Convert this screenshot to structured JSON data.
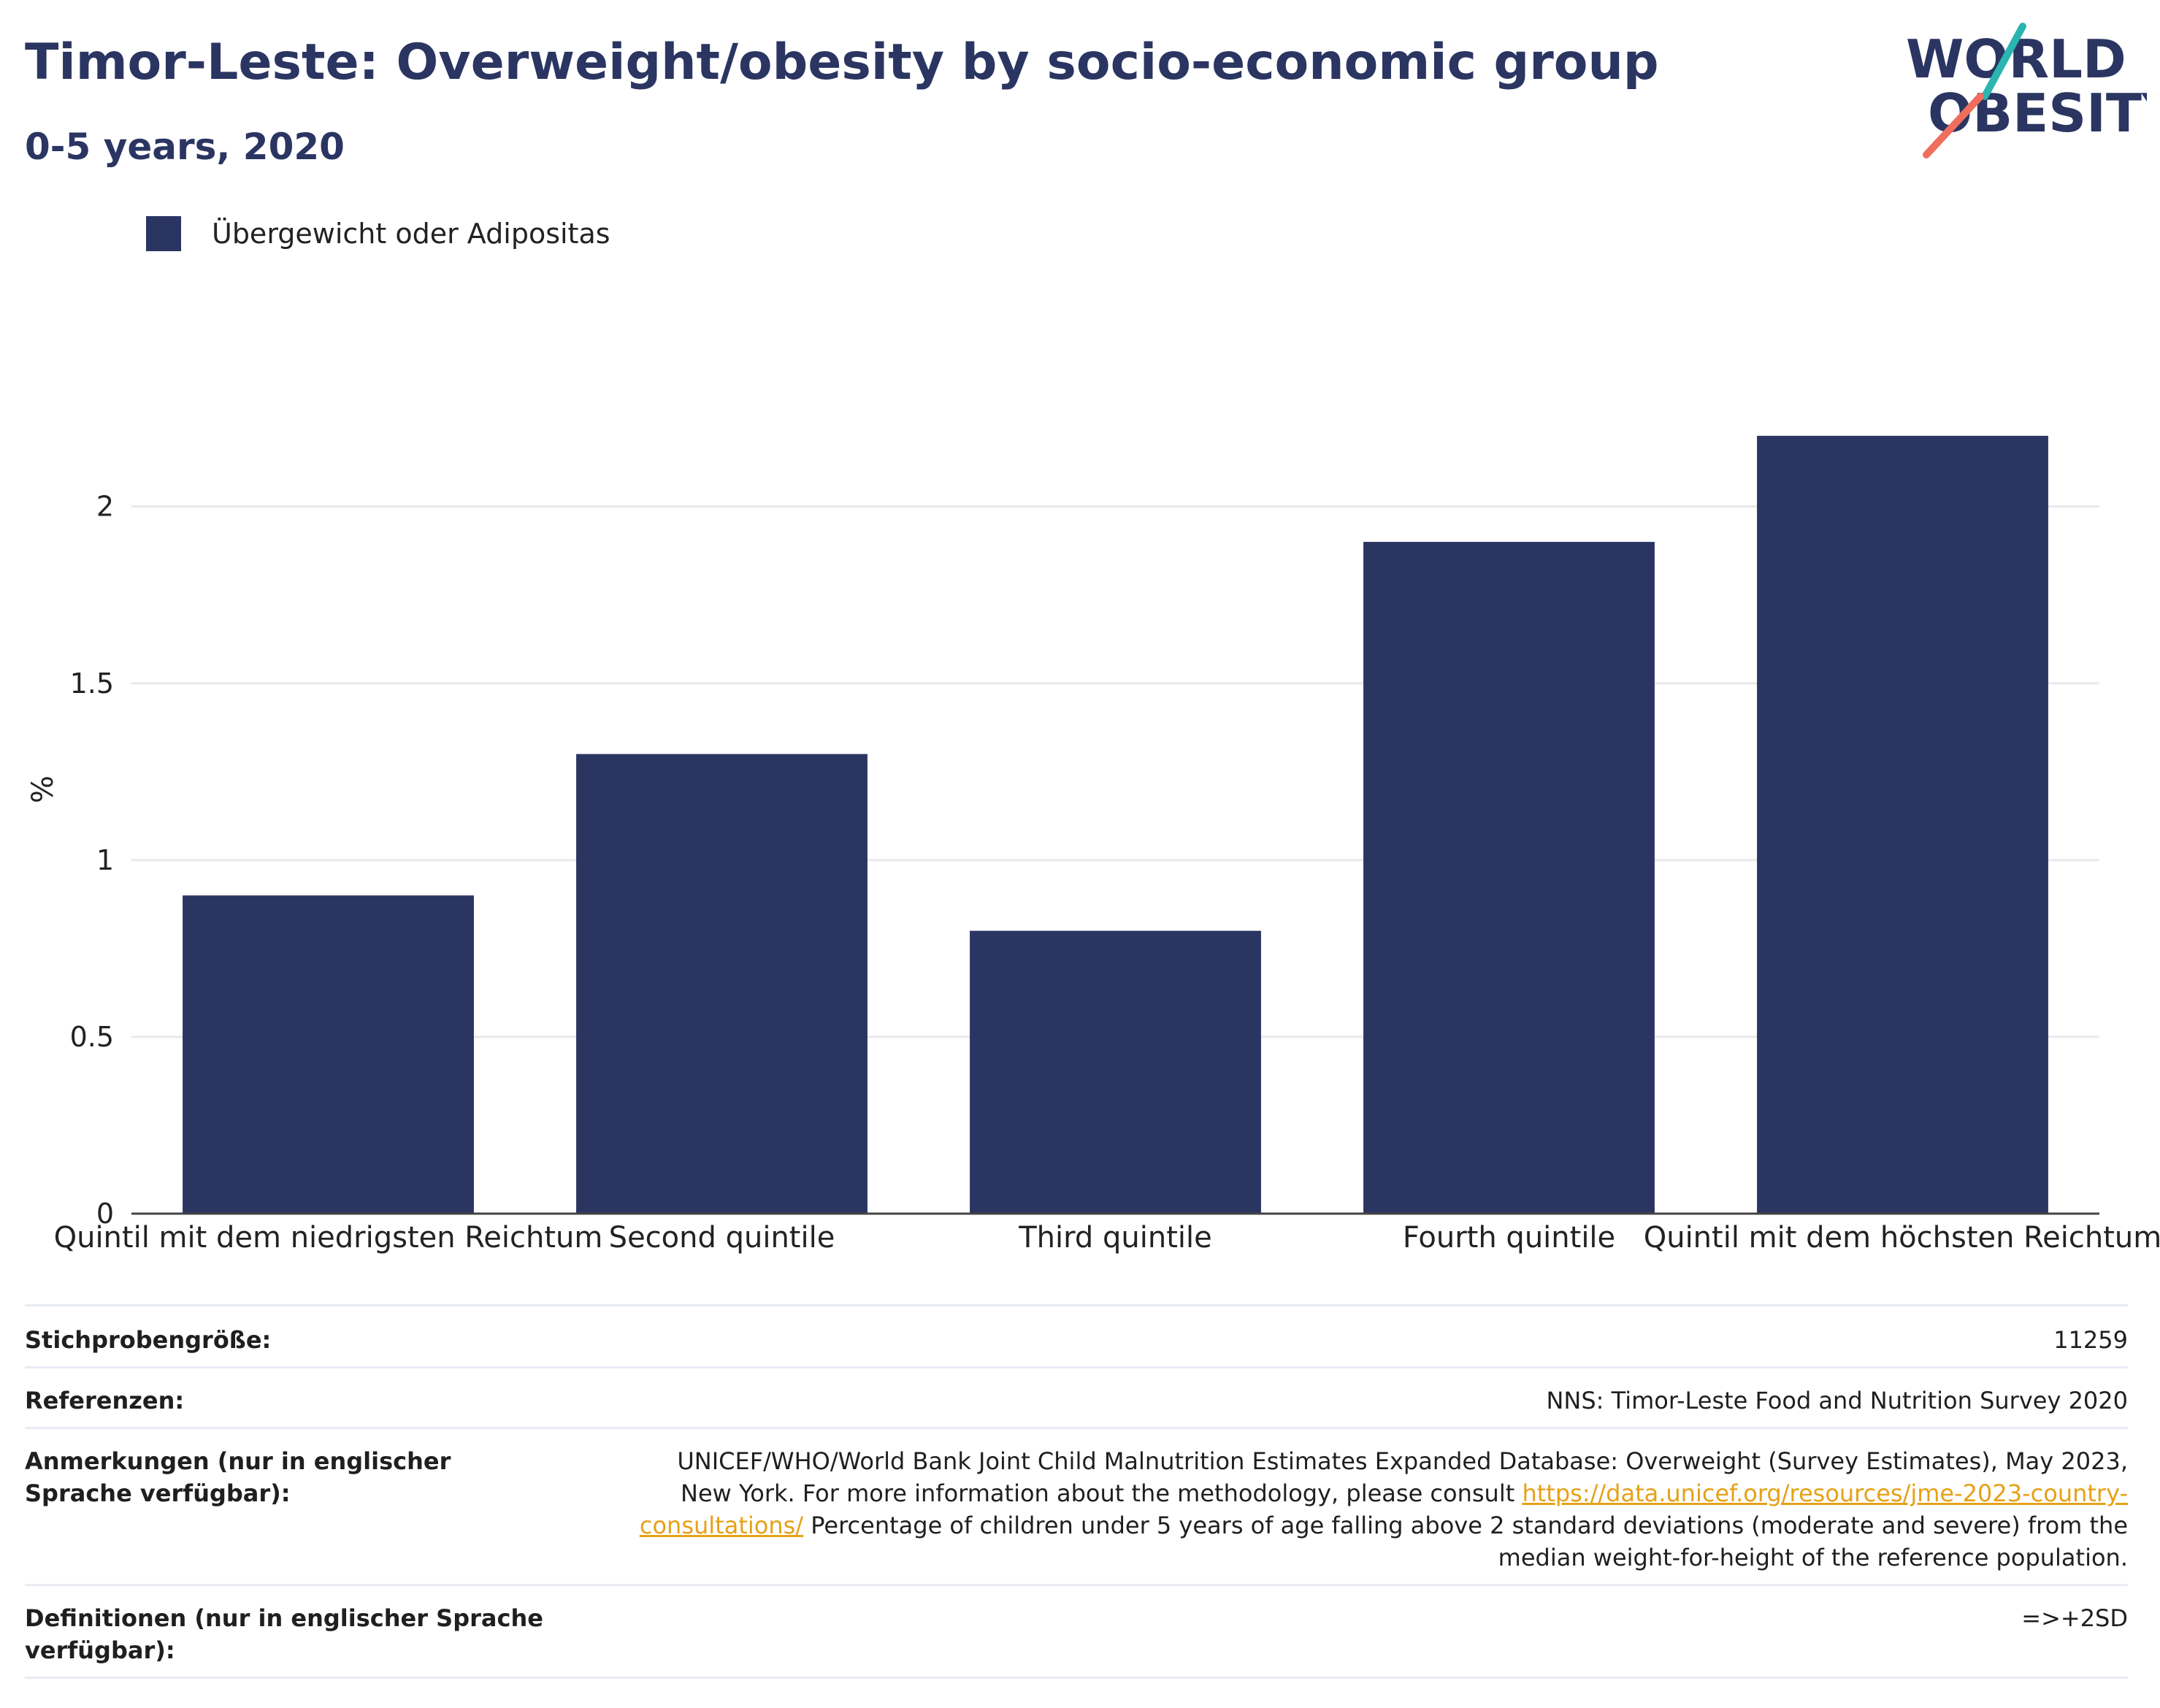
{
  "title": "Timor-Leste: Overweight/obesity by socio-economic group",
  "subtitle": "0-5 years, 2020",
  "logo": {
    "line1": "WORLD",
    "line2": "OBESITY"
  },
  "colors": {
    "bar": "#2b3562",
    "title": "#2b3562",
    "link": "#e6a117",
    "logo_teal": "#2ab5b0",
    "logo_coral": "#ef6e5d"
  },
  "chart_data": {
    "type": "bar",
    "categories": [
      "Quintil mit dem niedrigsten Reichtum",
      "Second quintile",
      "Third quintile",
      "Fourth quintile",
      "Quintil mit dem höchsten Reichtum"
    ],
    "series": [
      {
        "name": "Übergewicht oder Adipositas",
        "values": [
          0.9,
          1.3,
          0.8,
          1.9,
          2.2
        ]
      }
    ],
    "ylabel": "%",
    "ylim": [
      0,
      2.4
    ],
    "yticks": [
      0,
      0.5,
      1,
      1.5,
      2
    ],
    "ytick_labels": [
      "0",
      "0.5",
      "1",
      "1.5",
      "2"
    ],
    "grid": true,
    "legend_position": "top-left"
  },
  "info": {
    "sample_size_label": "Stichprobengröße:",
    "sample_size_value": "11259",
    "references_label": "Referenzen:",
    "references_value": "NNS: Timor-Leste Food and Nutrition Survey 2020",
    "notes_label": "Anmerkungen (nur in englischer Sprache verfügbar):",
    "notes_text_before": "UNICEF/WHO/World Bank Joint Child Malnutrition Estimates Expanded Database: Overweight (Survey Estimates), May 2023, New York. For more information about the methodology, please consult ",
    "notes_link": "https://data.unicef.org/resources/jme-2023-country-consultations/",
    "notes_text_after": " Percentage of children under 5 years of age falling above 2 standard deviations (moderate and severe) from the median weight-for-height of the reference population.",
    "definitions_label": "Definitionen (nur in englischer Sprache verfügbar):",
    "definitions_value": "=>+2SD"
  }
}
